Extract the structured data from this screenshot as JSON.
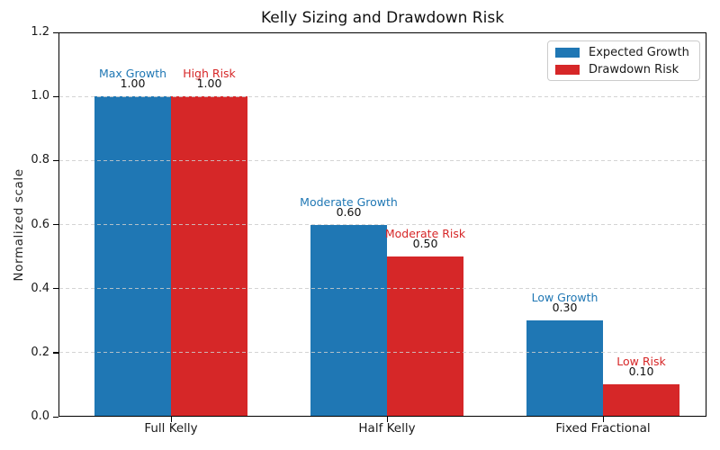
{
  "chart_data": {
    "type": "bar",
    "title": "Kelly Sizing and Drawdown Risk",
    "xlabel": "",
    "ylabel": "Normalized scale",
    "categories": [
      "Full Kelly",
      "Half Kelly",
      "Fixed Fractional"
    ],
    "series": [
      {
        "name": "Expected Growth",
        "color": "#1f77b4",
        "values": [
          1.0,
          0.6,
          0.3
        ],
        "value_labels": [
          "1.00",
          "0.60",
          "0.30"
        ],
        "annotations": [
          "Max Growth",
          "Moderate Growth",
          "Low Growth"
        ]
      },
      {
        "name": "Drawdown Risk",
        "color": "#d62728",
        "values": [
          1.0,
          0.5,
          0.1
        ],
        "value_labels": [
          "1.00",
          "0.50",
          "0.10"
        ],
        "annotations": [
          "High Risk",
          "Moderate Risk",
          "Low Risk"
        ]
      }
    ],
    "ylim": [
      0,
      1.2
    ],
    "yticks": [
      0.0,
      0.2,
      0.4,
      0.6,
      0.8,
      1.0,
      1.2
    ],
    "ytick_labels": [
      "0.0",
      "0.2",
      "0.4",
      "0.6",
      "0.8",
      "1.0",
      "1.2"
    ],
    "grid": "horizontal dashed, drawn over bars",
    "grid_color": "#cccccc",
    "legend_position": "upper right",
    "text_color": "#1a1a1a",
    "value_label_color": "#111111"
  }
}
